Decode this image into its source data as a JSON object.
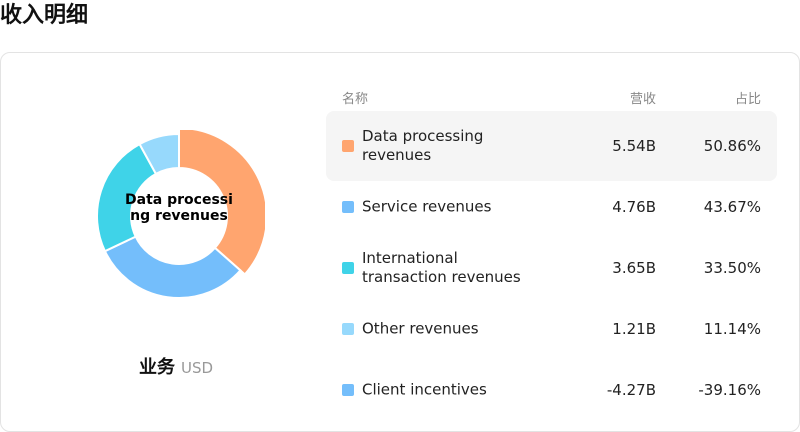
{
  "page_title": "收入明细",
  "segment": {
    "name": "业务",
    "unit": "USD"
  },
  "donut": {
    "center_label": "Data processing revenues",
    "selected_index": 0
  },
  "table": {
    "headers": {
      "name": "名称",
      "revenue": "营收",
      "share": "占比"
    },
    "rows": [
      {
        "name": "Data processing revenues",
        "revenue": "5.54B",
        "share": "50.86%",
        "color": "#FFA56F"
      },
      {
        "name": "Service revenues",
        "revenue": "4.76B",
        "share": "43.67%",
        "color": "#74BEFB"
      },
      {
        "name": "International transaction revenues",
        "revenue": "3.65B",
        "share": "33.50%",
        "color": "#3FD3E8"
      },
      {
        "name": "Other revenues",
        "revenue": "1.21B",
        "share": "11.14%",
        "color": "#97D9FC"
      },
      {
        "name": "Client incentives",
        "revenue": "-4.27B",
        "share": "-39.16%",
        "color": "#74BEFB"
      }
    ]
  },
  "chart_data": {
    "type": "pie",
    "categories": [
      "Data processing revenues",
      "Service revenues",
      "International transaction revenues",
      "Other revenues"
    ],
    "values": [
      5.54,
      4.76,
      3.65,
      1.21
    ],
    "colors": [
      "#FFA56F",
      "#74BEFB",
      "#3FD3E8",
      "#97D9FC"
    ]
  }
}
